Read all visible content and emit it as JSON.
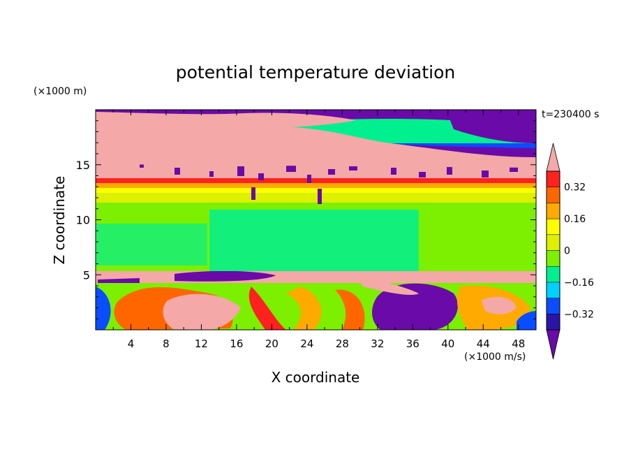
{
  "chart_data": {
    "type": "heatmap",
    "title": "potential temperature deviation",
    "time_label": "t=230400 s",
    "xlabel": "X coordinate",
    "ylabel": "Z coordinate",
    "x_unit": "(×1000 m/s)",
    "y_unit": "(×1000 m)",
    "xlim": [
      0,
      50
    ],
    "ylim": [
      0,
      20
    ],
    "x_ticks": [
      "4",
      "8",
      "12",
      "16",
      "20",
      "24",
      "28",
      "32",
      "36",
      "40",
      "44",
      "48"
    ],
    "y_ticks": [
      "5",
      "10",
      "15"
    ],
    "grid": false,
    "colorbar": {
      "placement": "right",
      "labels": [
        "0.32",
        "0.16",
        "0",
        "−0.16",
        "−0.32"
      ],
      "levels": [
        -0.4,
        -0.32,
        -0.24,
        -0.16,
        -0.08,
        0,
        0.08,
        0.16,
        0.24,
        0.32,
        0.4
      ],
      "colors": [
        "#6a0aa8",
        "#2a14a8",
        "#0a4cff",
        "#00d2ff",
        "#00f090",
        "#7cf000",
        "#dcf000",
        "#ffff00",
        "#ffaa00",
        "#ff6600",
        "#ff2020",
        "#f4a8a8"
      ]
    },
    "z_bands": [
      {
        "z_range": [
          0,
          4.3
        ],
        "pattern": "turbulent mix; purple −0.4 region x≈32–40, pink >0.4 blobs x≈9–16 and x≈41–45"
      },
      {
        "z_range": [
          4.3,
          5.3
        ],
        "pattern": "thin pink (>0.4) layer with purple patches x≈10–18"
      },
      {
        "z_range": [
          5.3,
          11.5
        ],
        "pattern": "mostly 0 to −0.08 (green)"
      },
      {
        "z_range": [
          11.5,
          13.8
        ],
        "pattern": "strong positive gradient: yellow, orange, red"
      },
      {
        "z_range": [
          13.8,
          15.5
        ],
        "pattern": "pink with scattered purple"
      },
      {
        "z_range": [
          15.5,
          20
        ],
        "pattern": "alternating purple and pink layers"
      }
    ]
  }
}
